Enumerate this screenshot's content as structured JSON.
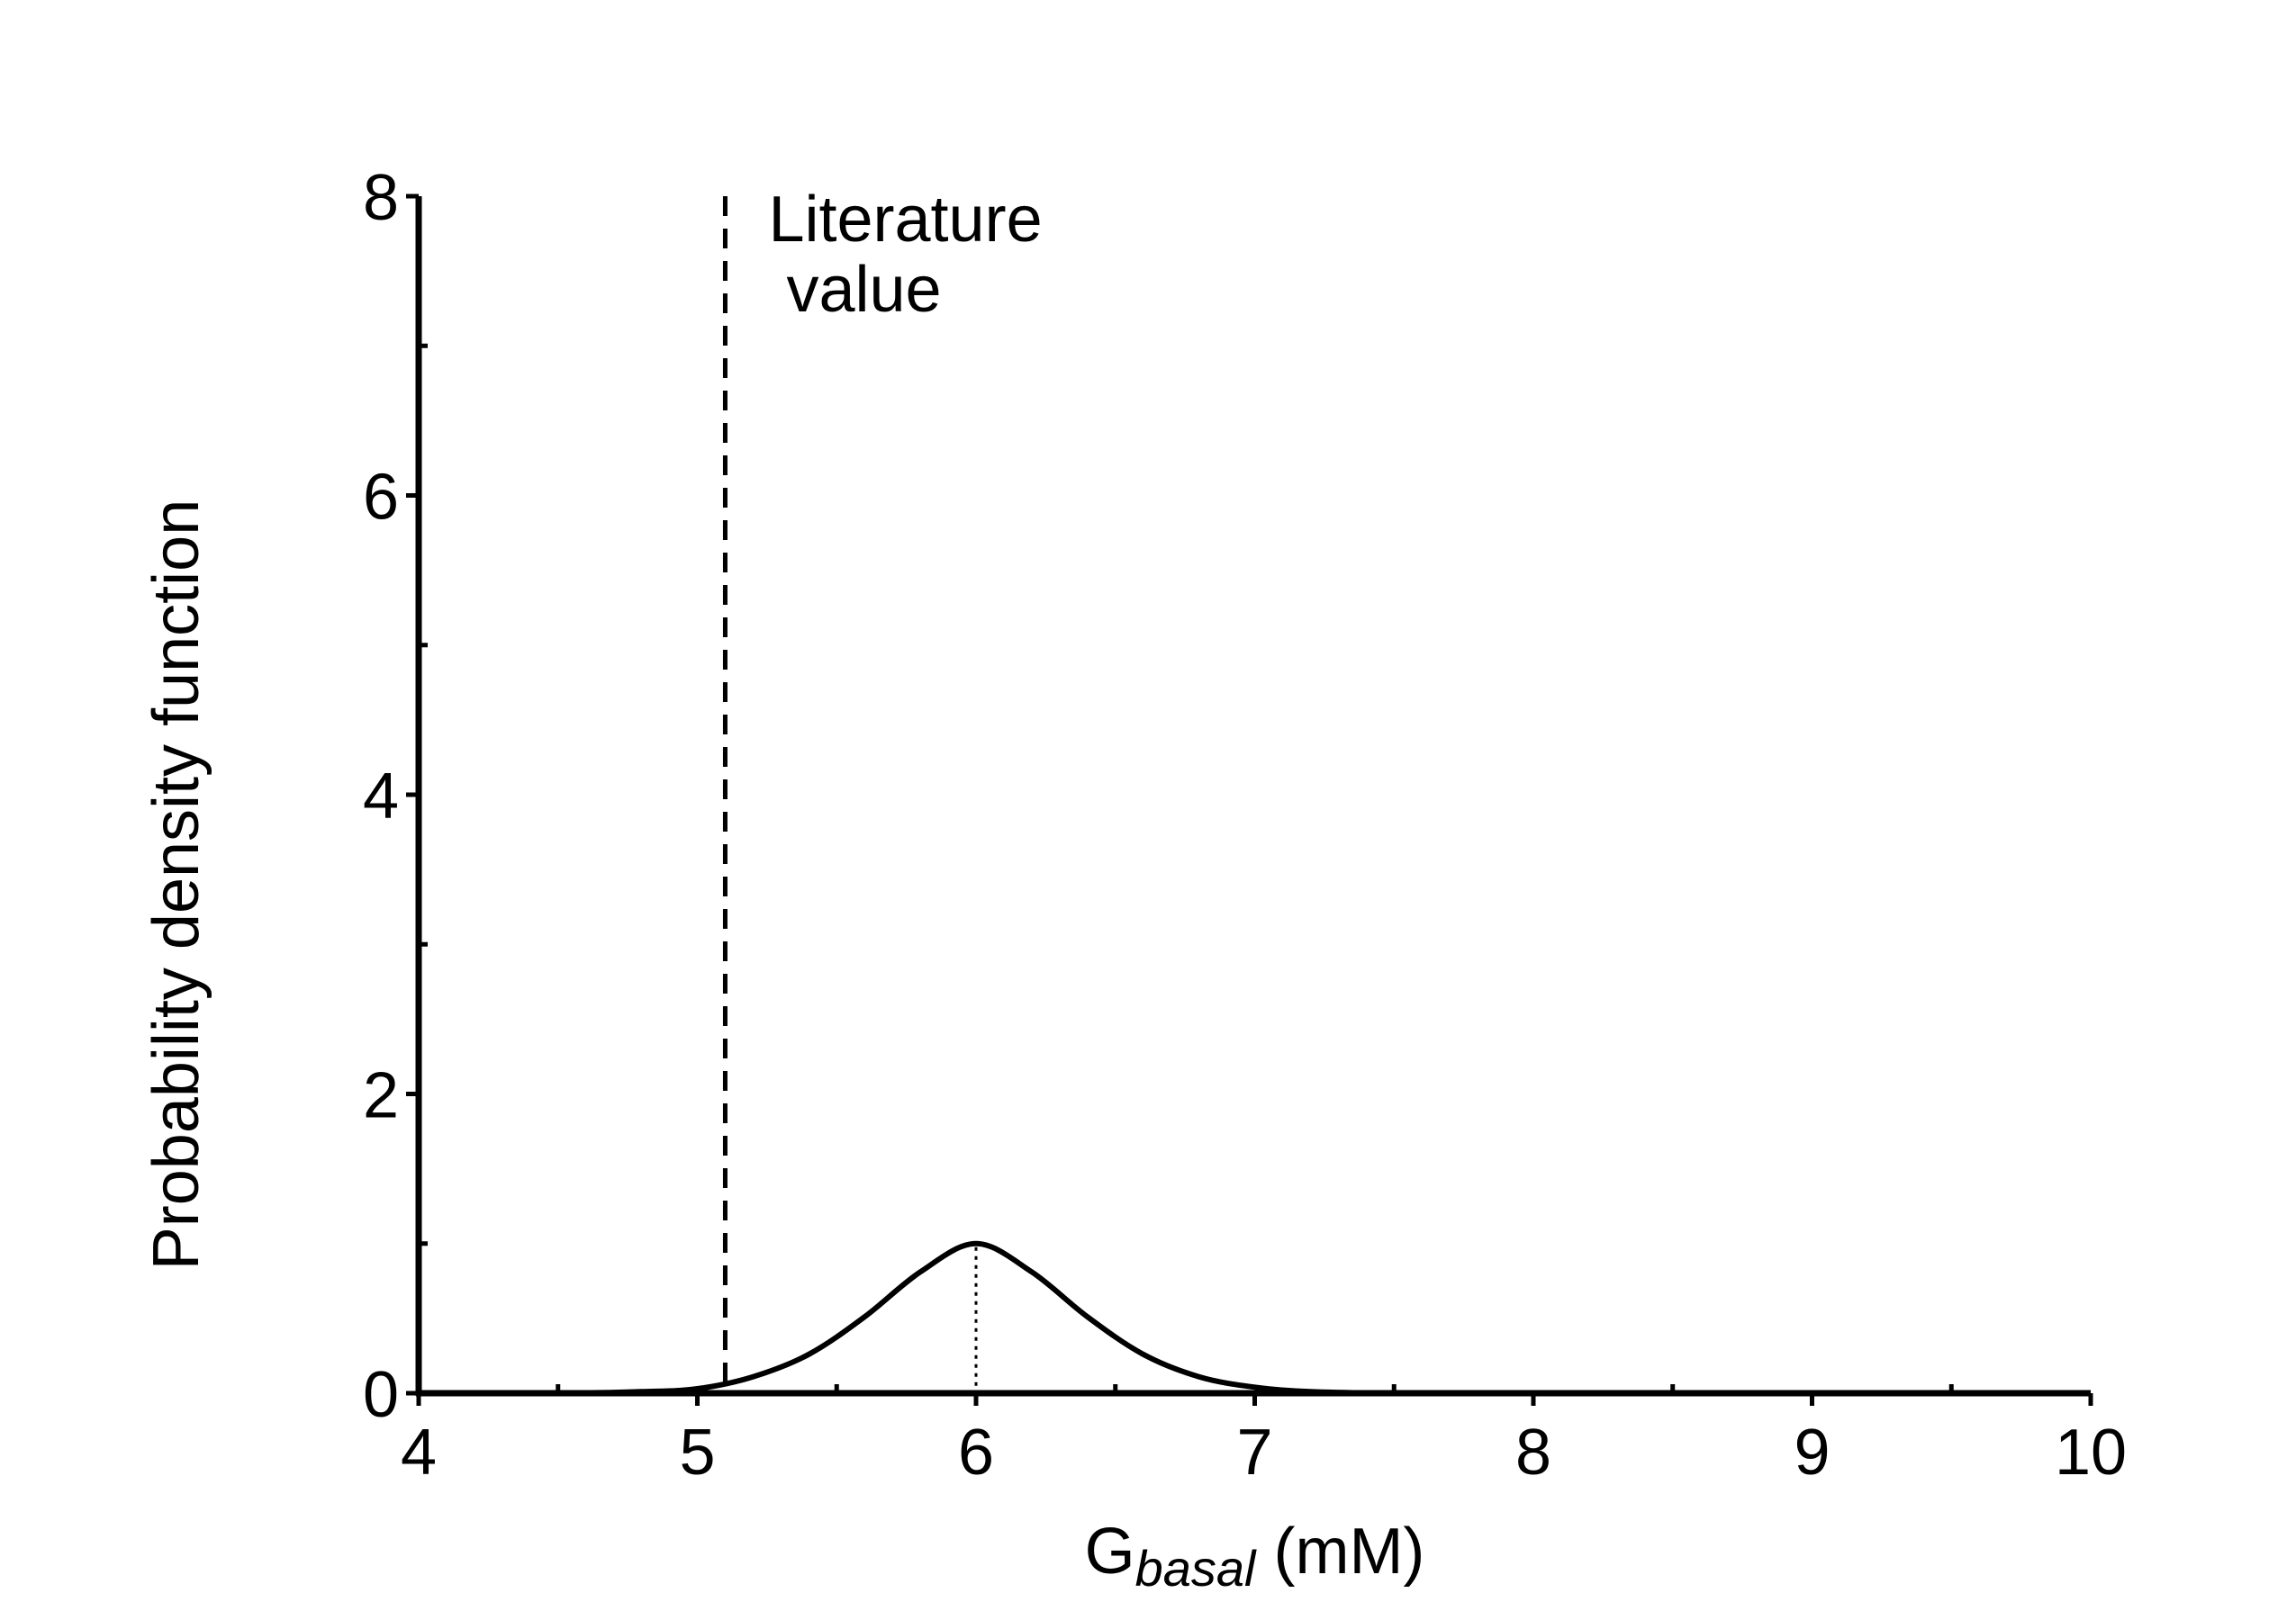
{
  "chart_data": {
    "type": "line",
    "title": "",
    "xlabel": {
      "main": "G",
      "subscript": "basal",
      "unit": " (mM)"
    },
    "ylabel": "Probability density function",
    "xlim": [
      4,
      10
    ],
    "ylim": [
      0,
      8
    ],
    "x_ticks": [
      "4",
      "5",
      "6",
      "7",
      "8",
      "9",
      "10"
    ],
    "x_tick_values": [
      4,
      5,
      6,
      7,
      8,
      9,
      10
    ],
    "x_minor_tick_values": [
      4.5,
      5.5,
      6.5,
      7.5,
      8.5,
      9.5
    ],
    "y_ticks": [
      "0",
      "2",
      "4",
      "6",
      "8"
    ],
    "y_tick_values": [
      0,
      2,
      4,
      6,
      8
    ],
    "y_minor_tick_values": [
      1,
      3,
      5,
      7
    ],
    "grid": false,
    "legend": "none",
    "series": [
      {
        "style": "solid",
        "color": "#000000",
        "x": [
          4.0,
          4.5,
          4.8,
          5.0,
          5.2,
          5.4,
          5.6,
          5.8,
          6.0,
          6.2,
          6.4,
          6.6,
          6.8,
          7.0,
          7.2,
          7.5,
          8.0,
          9.0,
          10.0
        ],
        "y": [
          0.0,
          0.0,
          0.01,
          0.03,
          0.11,
          0.26,
          0.51,
          0.81,
          1.0,
          0.81,
          0.51,
          0.26,
          0.11,
          0.04,
          0.01,
          0.0,
          0.0,
          0.0,
          0.0
        ]
      }
    ],
    "reference_lines": [
      {
        "style": "dashed",
        "x": 5.1,
        "y_range": [
          0,
          8
        ],
        "label_lines": [
          "Literature",
          "value"
        ]
      },
      {
        "style": "dotted",
        "x": 6.0,
        "y_range": [
          0,
          1.0
        ]
      }
    ]
  }
}
